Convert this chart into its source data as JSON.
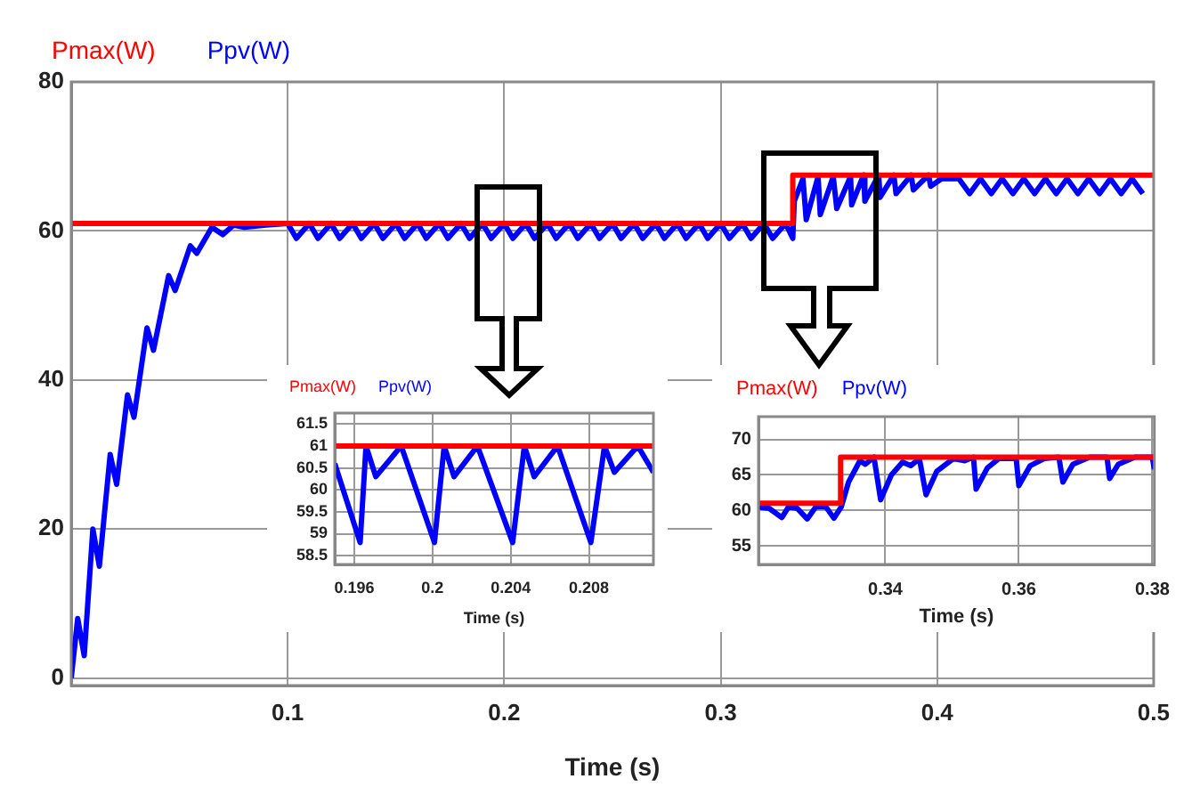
{
  "chart_data": [
    {
      "type": "line",
      "xlabel": "Time (s)",
      "xlim": [
        0,
        0.5
      ],
      "ylim": [
        -1,
        80
      ],
      "xticks": [
        0.1,
        0.2,
        0.3,
        0.4,
        0.5
      ],
      "yticks": [
        0,
        20,
        40,
        60,
        80
      ],
      "grid": true,
      "legend": "top left",
      "marker": "none",
      "line_style": "solid",
      "series": [
        {
          "name": "Pmax(W)",
          "color": "#ff0000",
          "x": [
            0,
            0.3333,
            0.3333,
            0.5
          ],
          "values": [
            61,
            61,
            67.5,
            67.5
          ]
        },
        {
          "name": "Ppv(W)",
          "color": "#0000ff",
          "x": [
            0,
            0.003,
            0.006,
            0.01,
            0.013,
            0.018,
            0.021,
            0.026,
            0.029,
            0.035,
            0.038,
            0.045,
            0.048,
            0.055,
            0.058,
            0.065,
            0.07,
            0.075,
            0.08,
            0.09,
            0.1,
            0.104,
            0.11,
            0.114,
            0.12,
            0.124,
            0.13,
            0.134,
            0.14,
            0.144,
            0.15,
            0.154,
            0.16,
            0.164,
            0.17,
            0.174,
            0.18,
            0.184,
            0.19,
            0.194,
            0.2,
            0.204,
            0.21,
            0.214,
            0.22,
            0.224,
            0.23,
            0.234,
            0.24,
            0.244,
            0.25,
            0.254,
            0.26,
            0.264,
            0.27,
            0.274,
            0.28,
            0.284,
            0.29,
            0.294,
            0.3,
            0.304,
            0.31,
            0.314,
            0.32,
            0.324,
            0.33,
            0.3333,
            0.334,
            0.338,
            0.3395,
            0.345,
            0.346,
            0.352,
            0.3536,
            0.36,
            0.3605,
            0.366,
            0.3666,
            0.373,
            0.3736,
            0.38,
            0.381,
            0.388,
            0.389,
            0.396,
            0.397,
            0.402,
            0.41,
            0.415,
            0.42,
            0.425,
            0.43,
            0.435,
            0.44,
            0.445,
            0.45,
            0.455,
            0.46,
            0.465,
            0.47,
            0.475,
            0.48,
            0.485,
            0.49,
            0.495
          ],
          "values": [
            0,
            8,
            3,
            20,
            15,
            30,
            26,
            38,
            35,
            47,
            44,
            54,
            52,
            58,
            57,
            60.5,
            59.5,
            60.8,
            60.5,
            60.8,
            61,
            59,
            61,
            59,
            61,
            59,
            61,
            59,
            61,
            59,
            61,
            59,
            61,
            59,
            61,
            59,
            61,
            59,
            61,
            59,
            61,
            59,
            61,
            59,
            61,
            59,
            61,
            59,
            61,
            59,
            61,
            59,
            61,
            59,
            61,
            59,
            61,
            59,
            61,
            59,
            61,
            59,
            61,
            59,
            61,
            59,
            61,
            59,
            64,
            67,
            61.5,
            67.3,
            62.2,
            67.3,
            63,
            67.3,
            63.5,
            67.5,
            64,
            67.5,
            64.5,
            67.5,
            65,
            67.5,
            65.5,
            67.5,
            66,
            67,
            67,
            65,
            67,
            65,
            67,
            65,
            67,
            65,
            67,
            65,
            67,
            65,
            67,
            65,
            67,
            65,
            67,
            65
          ]
        }
      ]
    },
    {
      "type": "line",
      "xlabel": "Time (s)",
      "xlim": [
        0.195,
        0.2113
      ],
      "ylim": [
        58.3,
        61.75
      ],
      "xticks": [
        0.196,
        0.2,
        0.204,
        0.208
      ],
      "yticks": [
        58.5,
        59,
        59.5,
        60,
        60.5,
        61,
        61.5
      ],
      "grid": true,
      "legend": "top left",
      "marker": "none",
      "line_style": "solid",
      "series": [
        {
          "name": "Pmax(W)",
          "color": "#ff0000",
          "x": [
            0.195,
            0.2113
          ],
          "values": [
            61,
            61
          ]
        },
        {
          "name": "Ppv(W)",
          "color": "#0000ff",
          "x": [
            0.195,
            0.1963,
            0.1966,
            0.1971,
            0.1984,
            0.2001,
            0.2006,
            0.2011,
            0.2023,
            0.2041,
            0.2047,
            0.2052,
            0.2064,
            0.2081,
            0.2088,
            0.2093,
            0.2105,
            0.2113
          ],
          "values": [
            60.6,
            58.8,
            61,
            60.3,
            61,
            58.8,
            61,
            60.3,
            61,
            58.8,
            61,
            60.3,
            61,
            58.8,
            61,
            60.4,
            61,
            60.4
          ]
        }
      ]
    },
    {
      "type": "line",
      "xlabel": "Time (s)",
      "xlim": [
        0.321,
        0.3803
      ],
      "ylim": [
        52.4,
        73.2
      ],
      "xticks": [
        0.34,
        0.36,
        0.38
      ],
      "yticks": [
        55,
        60,
        65,
        70
      ],
      "grid": true,
      "legend": "top left",
      "marker": "none",
      "line_style": "solid",
      "series": [
        {
          "name": "Pmax(W)",
          "color": "#ff0000",
          "x": [
            0.321,
            0.3333,
            0.3333,
            0.3803
          ],
          "values": [
            61,
            61,
            67.5,
            67.5
          ]
        },
        {
          "name": "Ppv(W)",
          "color": "#0000ff",
          "x": [
            0.321,
            0.3226,
            0.3245,
            0.3255,
            0.3268,
            0.3283,
            0.3296,
            0.3311,
            0.3323,
            0.3334,
            0.3345,
            0.3362,
            0.337,
            0.3383,
            0.3393,
            0.3409,
            0.3426,
            0.3438,
            0.3451,
            0.3461,
            0.3477,
            0.3502,
            0.3519,
            0.3532,
            0.3536,
            0.3553,
            0.357,
            0.3596,
            0.36,
            0.3617,
            0.3638,
            0.366,
            0.3666,
            0.3681,
            0.3706,
            0.3732,
            0.3736,
            0.3749,
            0.3774,
            0.38,
            0.3803
          ],
          "values": [
            60.5,
            60.3,
            59,
            60.5,
            60.3,
            58.8,
            60.5,
            60.5,
            58.9,
            60.5,
            64,
            67,
            66.5,
            67.5,
            61.5,
            65,
            66.8,
            66.3,
            67.3,
            62.2,
            65.5,
            67.3,
            67,
            67.5,
            63,
            66,
            67.3,
            67.3,
            63.5,
            66.3,
            67.3,
            67.5,
            64,
            66.5,
            67.5,
            67.5,
            64.5,
            66.5,
            67.5,
            67.5,
            65.8
          ]
        }
      ]
    }
  ]
}
